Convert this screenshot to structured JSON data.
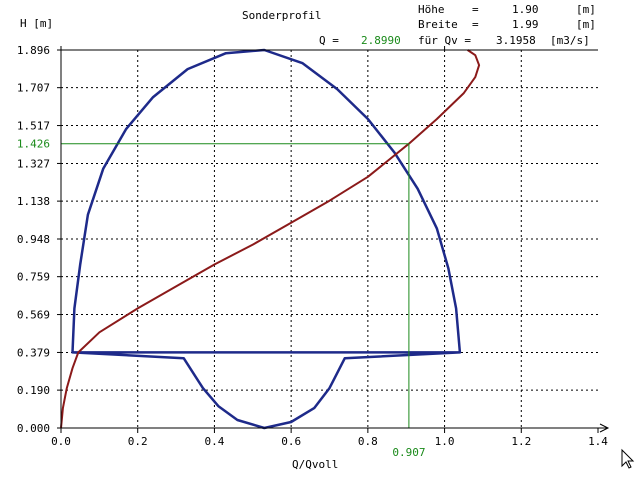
{
  "header": {
    "title": "Sonderprofil",
    "hoehe_label": "Höhe",
    "hoehe_eq": "=",
    "hoehe_value": "1.90",
    "hoehe_unit": "[m]",
    "breite_label": "Breite",
    "breite_eq": "=",
    "breite_value": "1.99",
    "breite_unit": "[m]",
    "q_label": "Q =",
    "q_value": "2.8990",
    "qv_label": "für Qv =",
    "qv_value": "3.1958",
    "qv_unit": "[m3/s]"
  },
  "colors": {
    "profile": "#1e2a8a",
    "curve": "#8b1a1a",
    "highlight": "#1a8a1a",
    "axis": "#000000"
  },
  "chart_data": {
    "type": "line",
    "title": "Sonderprofil",
    "xlabel": "Q/Qvoll",
    "ylabel": "H [m]",
    "xlim": [
      0,
      1.4
    ],
    "ylim": [
      0,
      1.896
    ],
    "grid": true,
    "x_ticks": [
      "0.0",
      "0.2",
      "0.4",
      "0.6",
      "0.8",
      "1.0",
      "1.2",
      "1.4"
    ],
    "y_ticks": [
      "0.000",
      "0.190",
      "0.379",
      "0.569",
      "0.759",
      "0.948",
      "1.138",
      "1.327",
      "1.517",
      "1.707",
      "1.896"
    ],
    "highlight": {
      "x": 0.907,
      "y": 1.426,
      "x_label": "0.907",
      "y_label": "1.426"
    },
    "series": [
      {
        "id": "profile",
        "color": "#1e2a8a",
        "points": [
          [
            0.03,
            0.379
          ],
          [
            1.04,
            0.379
          ],
          [
            1.03,
            0.6
          ],
          [
            1.01,
            0.8
          ],
          [
            0.98,
            1.0
          ],
          [
            0.93,
            1.2
          ],
          [
            0.87,
            1.38
          ],
          [
            0.8,
            1.55
          ],
          [
            0.72,
            1.7
          ],
          [
            0.63,
            1.83
          ],
          [
            0.53,
            1.896
          ],
          [
            0.43,
            1.88
          ],
          [
            0.33,
            1.8
          ],
          [
            0.24,
            1.66
          ],
          [
            0.17,
            1.5
          ],
          [
            0.11,
            1.3
          ],
          [
            0.07,
            1.07
          ],
          [
            0.05,
            0.82
          ],
          [
            0.035,
            0.6
          ],
          [
            0.03,
            0.379
          ],
          [
            0.03,
            0.379
          ],
          [
            0.32,
            0.35
          ],
          [
            0.37,
            0.2
          ],
          [
            0.41,
            0.11
          ],
          [
            0.46,
            0.04
          ],
          [
            0.53,
            0.0
          ],
          [
            0.6,
            0.03
          ],
          [
            0.66,
            0.1
          ],
          [
            0.7,
            0.2
          ],
          [
            0.74,
            0.35
          ],
          [
            1.04,
            0.379
          ]
        ]
      },
      {
        "id": "q_curve",
        "color": "#8b1a1a",
        "points": [
          [
            0.0,
            0.0
          ],
          [
            0.005,
            0.1
          ],
          [
            0.015,
            0.2
          ],
          [
            0.03,
            0.3
          ],
          [
            0.045,
            0.379
          ],
          [
            0.1,
            0.48
          ],
          [
            0.2,
            0.6
          ],
          [
            0.3,
            0.71
          ],
          [
            0.4,
            0.82
          ],
          [
            0.5,
            0.92
          ],
          [
            0.6,
            1.03
          ],
          [
            0.7,
            1.14
          ],
          [
            0.8,
            1.26
          ],
          [
            0.907,
            1.426
          ],
          [
            0.98,
            1.55
          ],
          [
            1.05,
            1.68
          ],
          [
            1.08,
            1.76
          ],
          [
            1.09,
            1.82
          ],
          [
            1.08,
            1.87
          ],
          [
            1.06,
            1.896
          ]
        ]
      }
    ]
  }
}
